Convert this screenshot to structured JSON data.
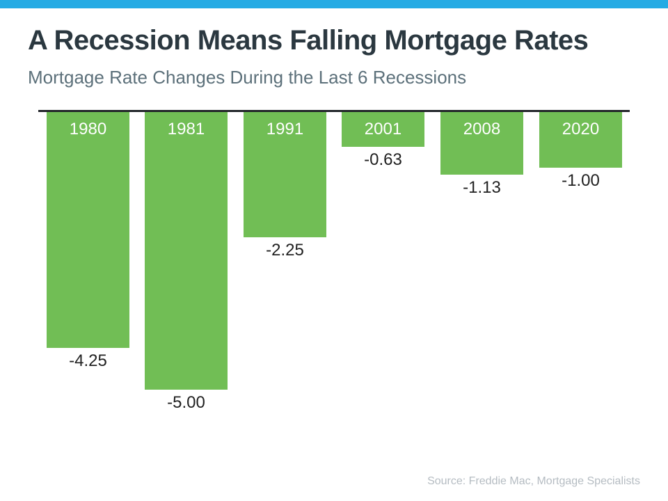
{
  "chart_data": {
    "type": "bar",
    "title": "A Recession Means Falling Mortgage Rates",
    "subtitle": "Mortgage Rate Changes During the Last 6 Recessions",
    "categories": [
      "1980",
      "1981",
      "1991",
      "2001",
      "2008",
      "2020"
    ],
    "values": [
      -4.25,
      -5.0,
      -2.25,
      -0.63,
      -1.13,
      -1.0
    ],
    "value_labels": [
      "-4.25",
      "-5.00",
      "-2.25",
      "-0.63",
      "-1.13",
      "-1.00"
    ],
    "ylim": [
      -5.5,
      0
    ],
    "grid": false,
    "legend": false,
    "bars_hang_below_baseline": true,
    "source": "Source: Freddie Mac, Mortgage Specialists"
  },
  "colors": {
    "top_strip": "#25ABE4",
    "bar_green": "#71BE55",
    "title_text": "#2B3840",
    "subtitle_text": "#5C707A",
    "axis_line": "#212429",
    "value_text": "#212121",
    "year_text": "#FFFFFF",
    "source_text": "#B5BCC2"
  }
}
